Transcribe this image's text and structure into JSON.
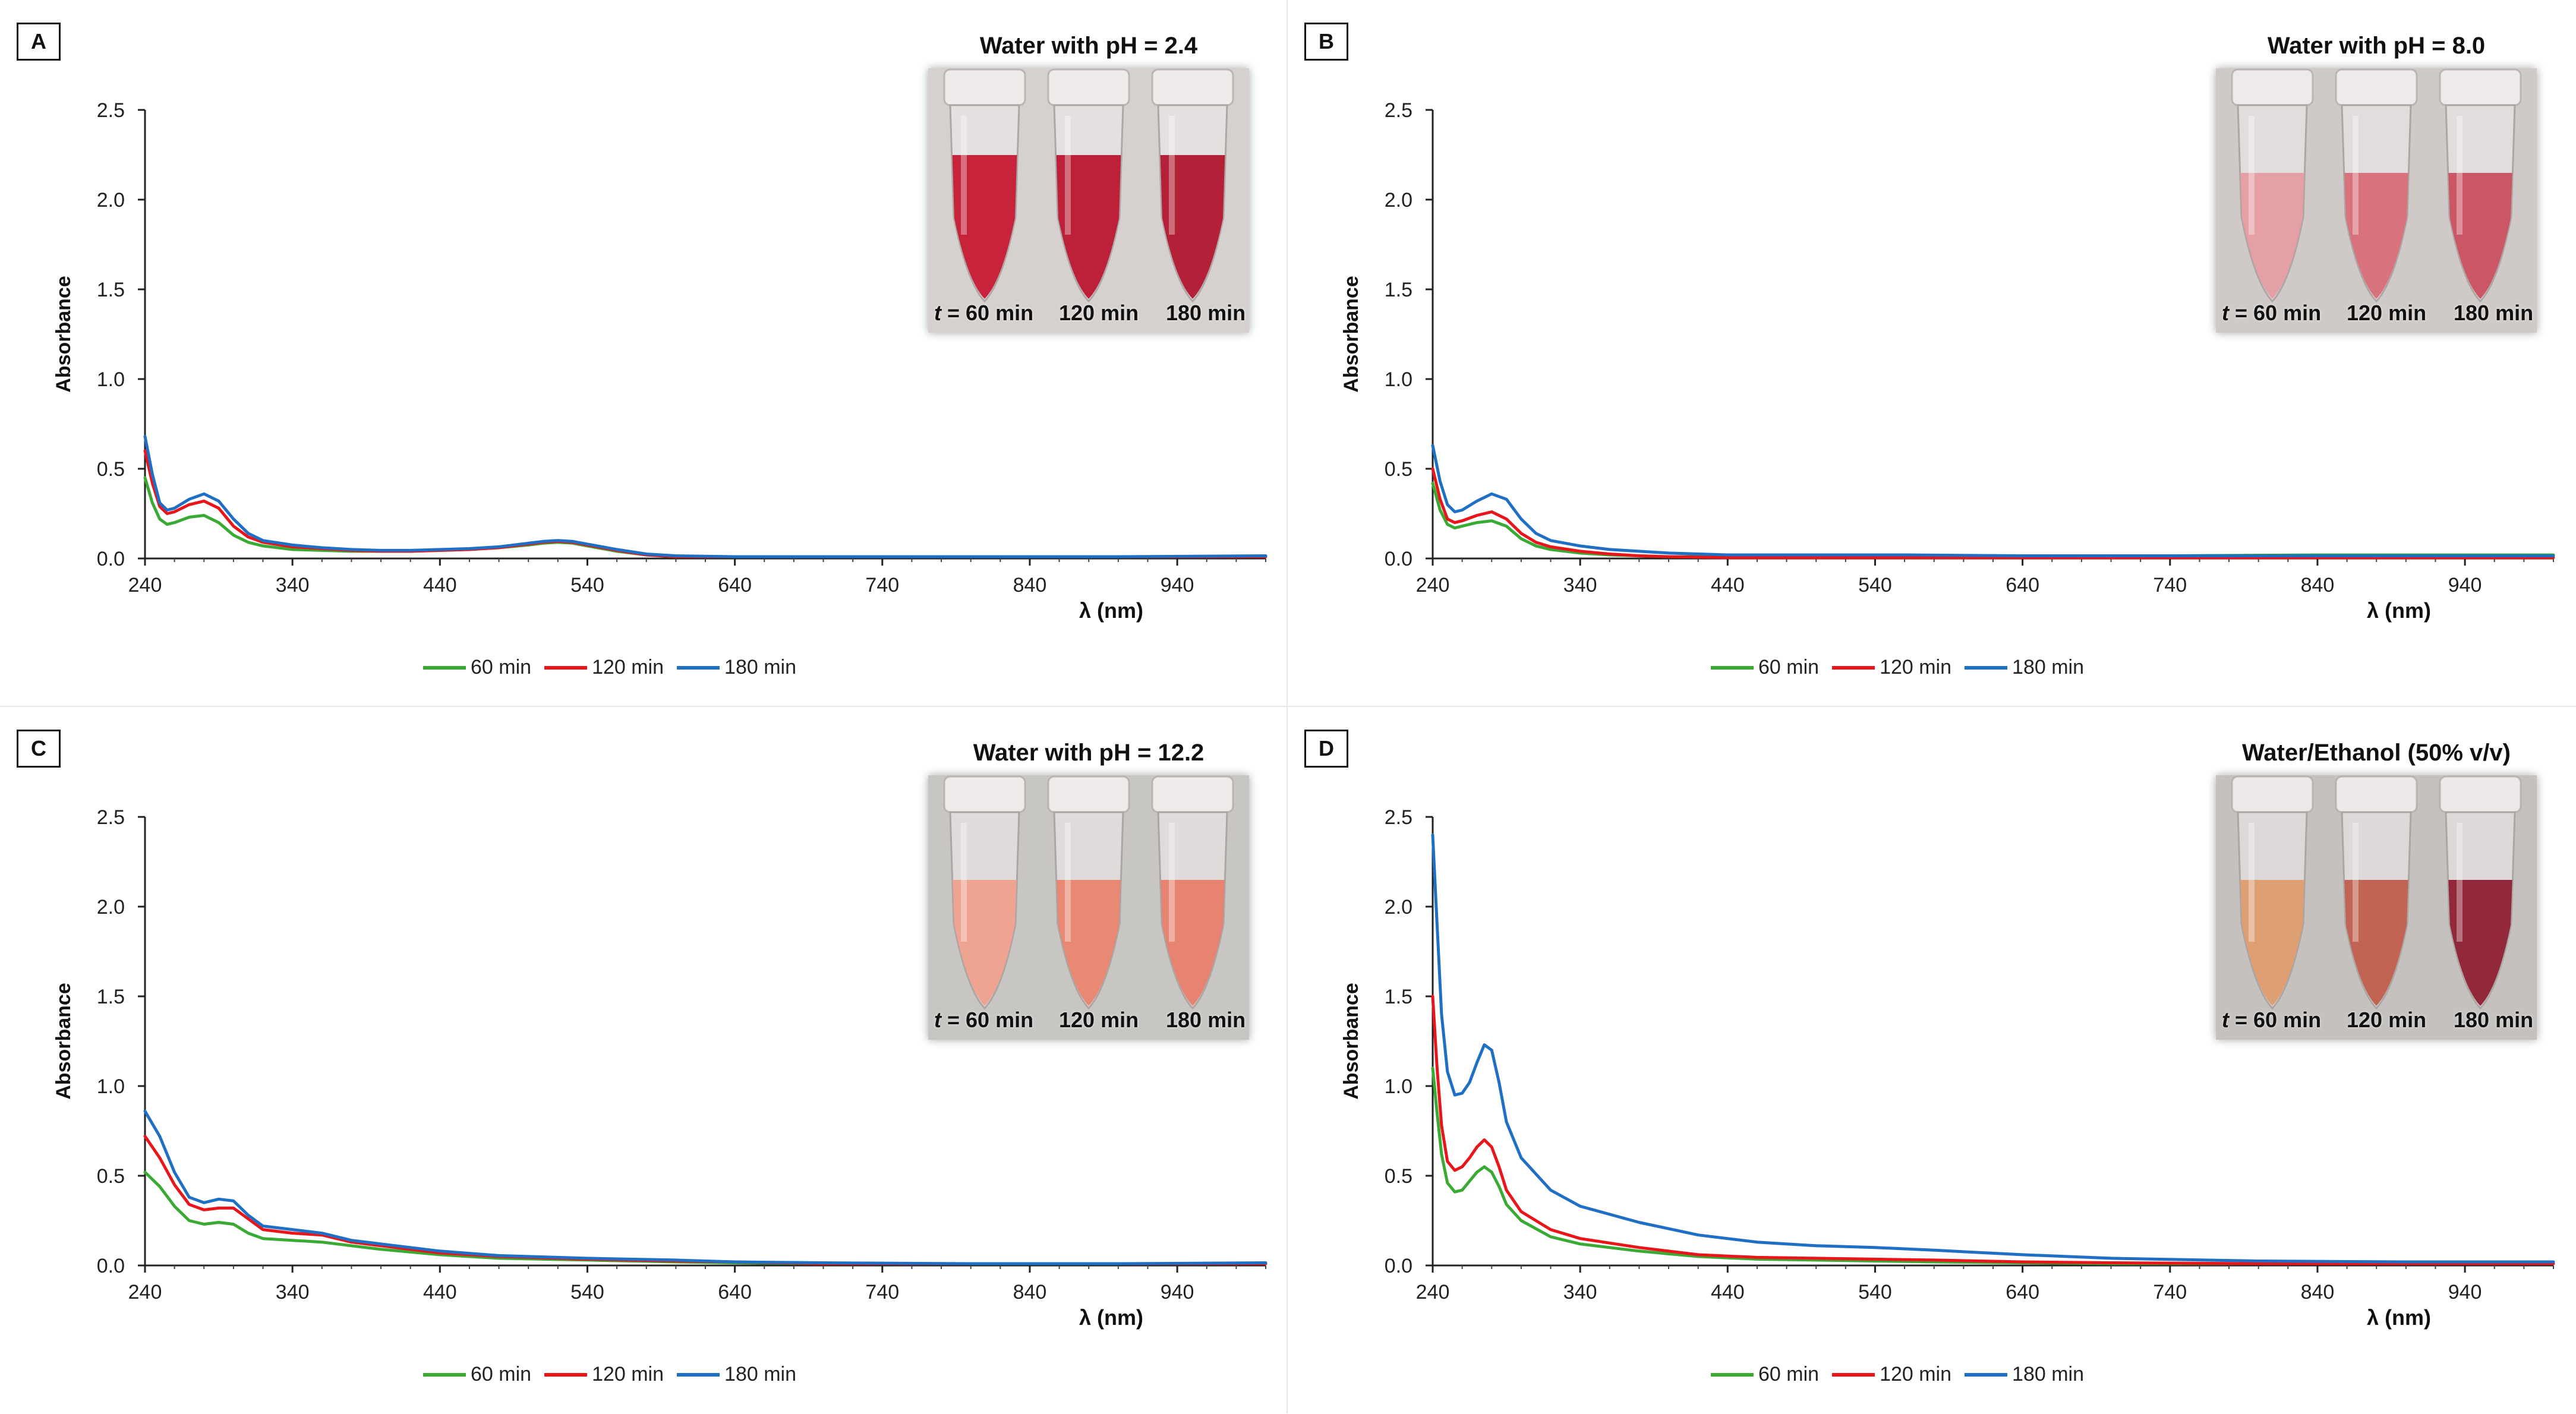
{
  "legend": {
    "items": [
      {
        "label": "60 min",
        "color": "#3aaa35"
      },
      {
        "label": "120 min",
        "color": "#e8161b"
      },
      {
        "label": "180 min",
        "color": "#1f6fc5"
      }
    ]
  },
  "photo_labels": {
    "prefix": "t",
    "t60": " = 60 min",
    "t120": "120 min",
    "t180": "180 min"
  },
  "panels": [
    {
      "letter": "A",
      "inset_title": "Water with pH = 2.4",
      "tube_colors": [
        "#c4122c",
        "#b9102a",
        "#b00f28"
      ],
      "tube_fill": 0.72,
      "photo_bg": "#d6d1ce"
    },
    {
      "letter": "B",
      "inset_title": "Water with pH = 8.0",
      "tube_colors": [
        "#e49aa0",
        "#d76874",
        "#c94a5a"
      ],
      "tube_fill": 0.62,
      "photo_bg": "#cfcac7"
    },
    {
      "letter": "C",
      "inset_title": "Water with pH = 12.2",
      "tube_colors": [
        "#efa08a",
        "#e8826a",
        "#e67c68"
      ],
      "tube_fill": 0.62,
      "photo_bg": "#c8c6c3"
    },
    {
      "letter": "D",
      "inset_title": "Water/Ethanol (50% v/v)",
      "tube_colors": [
        "#dd9a6a",
        "#bf5a48",
        "#8a1a2c"
      ],
      "tube_fill": 0.62,
      "photo_bg": "#c4c1be"
    }
  ],
  "chart_data": [
    {
      "type": "line",
      "title": "",
      "xlabel": "λ (nm)",
      "ylabel": "Absorbance",
      "xlim": [
        240,
        1000
      ],
      "ylim": [
        0,
        2.5
      ],
      "xticks": [
        240,
        340,
        440,
        540,
        640,
        740,
        840,
        940
      ],
      "yticks": [
        0.0,
        0.5,
        1.0,
        1.5,
        2.0,
        2.5
      ],
      "series": [
        {
          "name": "60 min",
          "x": [
            240,
            245,
            250,
            255,
            260,
            270,
            280,
            290,
            300,
            310,
            320,
            340,
            360,
            380,
            400,
            420,
            440,
            460,
            480,
            500,
            510,
            520,
            530,
            540,
            560,
            580,
            600,
            640,
            700,
            800,
            900,
            1000
          ],
          "y": [
            0.45,
            0.31,
            0.22,
            0.19,
            0.2,
            0.23,
            0.24,
            0.2,
            0.13,
            0.09,
            0.07,
            0.05,
            0.045,
            0.04,
            0.04,
            0.04,
            0.045,
            0.05,
            0.06,
            0.075,
            0.085,
            0.09,
            0.085,
            0.07,
            0.04,
            0.02,
            0.01,
            0.01,
            0.01,
            0.01,
            0.01,
            0.01
          ]
        },
        {
          "name": "120 min",
          "x": [
            240,
            245,
            250,
            255,
            260,
            270,
            280,
            290,
            300,
            310,
            320,
            340,
            360,
            380,
            400,
            420,
            440,
            460,
            480,
            500,
            510,
            520,
            530,
            540,
            560,
            580,
            600,
            640,
            700,
            800,
            900,
            1000
          ],
          "y": [
            0.6,
            0.42,
            0.29,
            0.25,
            0.26,
            0.3,
            0.32,
            0.28,
            0.18,
            0.12,
            0.09,
            0.065,
            0.055,
            0.045,
            0.04,
            0.04,
            0.045,
            0.05,
            0.06,
            0.08,
            0.09,
            0.095,
            0.09,
            0.075,
            0.045,
            0.02,
            0.01,
            0.01,
            0.01,
            0.01,
            0.01,
            0.01
          ]
        },
        {
          "name": "180 min",
          "x": [
            240,
            245,
            250,
            255,
            260,
            270,
            280,
            290,
            300,
            310,
            320,
            340,
            360,
            380,
            400,
            420,
            440,
            460,
            480,
            500,
            510,
            520,
            530,
            540,
            560,
            580,
            600,
            640,
            700,
            800,
            900,
            1000
          ],
          "y": [
            0.68,
            0.47,
            0.31,
            0.27,
            0.28,
            0.33,
            0.36,
            0.32,
            0.22,
            0.14,
            0.1,
            0.075,
            0.06,
            0.05,
            0.045,
            0.045,
            0.05,
            0.055,
            0.065,
            0.085,
            0.095,
            0.1,
            0.095,
            0.08,
            0.05,
            0.025,
            0.015,
            0.01,
            0.01,
            0.01,
            0.01,
            0.015
          ]
        }
      ]
    },
    {
      "type": "line",
      "title": "",
      "xlabel": "λ (nm)",
      "ylabel": "Absorbance",
      "xlim": [
        240,
        1000
      ],
      "ylim": [
        0,
        2.5
      ],
      "xticks": [
        240,
        340,
        440,
        540,
        640,
        740,
        840,
        940
      ],
      "yticks": [
        0.0,
        0.5,
        1.0,
        1.5,
        2.0,
        2.5
      ],
      "series": [
        {
          "name": "60 min",
          "x": [
            240,
            245,
            250,
            255,
            260,
            270,
            280,
            290,
            300,
            310,
            320,
            340,
            360,
            380,
            400,
            440,
            500,
            560,
            640,
            740,
            840,
            940,
            1000
          ],
          "y": [
            0.42,
            0.27,
            0.19,
            0.17,
            0.18,
            0.2,
            0.21,
            0.18,
            0.11,
            0.07,
            0.05,
            0.03,
            0.02,
            0.015,
            0.01,
            0.01,
            0.01,
            0.01,
            0.01,
            0.015,
            0.02,
            0.02,
            0.02
          ]
        },
        {
          "name": "120 min",
          "x": [
            240,
            245,
            250,
            255,
            260,
            270,
            280,
            290,
            300,
            310,
            320,
            340,
            360,
            380,
            400,
            440,
            500,
            560,
            640,
            740,
            840,
            940,
            1000
          ],
          "y": [
            0.5,
            0.33,
            0.22,
            0.2,
            0.21,
            0.24,
            0.26,
            0.22,
            0.14,
            0.09,
            0.065,
            0.04,
            0.025,
            0.015,
            0.01,
            0.005,
            0.005,
            0.005,
            0.005,
            0.005,
            0.005,
            0.005,
            0.005
          ]
        },
        {
          "name": "180 min",
          "x": [
            240,
            245,
            250,
            255,
            260,
            270,
            280,
            290,
            300,
            310,
            320,
            340,
            360,
            380,
            400,
            440,
            500,
            560,
            640,
            740,
            840,
            940,
            1000
          ],
          "y": [
            0.63,
            0.43,
            0.3,
            0.26,
            0.27,
            0.32,
            0.36,
            0.33,
            0.22,
            0.14,
            0.1,
            0.07,
            0.05,
            0.04,
            0.03,
            0.02,
            0.02,
            0.02,
            0.015,
            0.015,
            0.015,
            0.015,
            0.015
          ]
        }
      ]
    },
    {
      "type": "line",
      "title": "",
      "xlabel": "λ (nm)",
      "ylabel": "Absorbance",
      "xlim": [
        240,
        1000
      ],
      "ylim": [
        0,
        2.5
      ],
      "xticks": [
        240,
        340,
        440,
        540,
        640,
        740,
        840,
        940
      ],
      "yticks": [
        0.0,
        0.5,
        1.0,
        1.5,
        2.0,
        2.5
      ],
      "series": [
        {
          "name": "60 min",
          "x": [
            240,
            250,
            260,
            270,
            280,
            290,
            300,
            310,
            320,
            340,
            360,
            380,
            400,
            440,
            480,
            540,
            600,
            640,
            700,
            800,
            900,
            1000
          ],
          "y": [
            0.52,
            0.44,
            0.33,
            0.25,
            0.23,
            0.24,
            0.23,
            0.18,
            0.15,
            0.14,
            0.13,
            0.11,
            0.09,
            0.06,
            0.04,
            0.03,
            0.02,
            0.015,
            0.01,
            0.01,
            0.01,
            0.01
          ]
        },
        {
          "name": "120 min",
          "x": [
            240,
            250,
            260,
            270,
            280,
            290,
            300,
            310,
            320,
            340,
            360,
            380,
            400,
            440,
            480,
            540,
            600,
            640,
            700,
            800,
            900,
            1000
          ],
          "y": [
            0.72,
            0.6,
            0.45,
            0.34,
            0.31,
            0.32,
            0.32,
            0.26,
            0.2,
            0.18,
            0.17,
            0.13,
            0.11,
            0.07,
            0.05,
            0.035,
            0.025,
            0.02,
            0.01,
            0.01,
            0.01,
            0.01
          ]
        },
        {
          "name": "180 min",
          "x": [
            240,
            250,
            260,
            270,
            280,
            290,
            300,
            310,
            320,
            340,
            360,
            380,
            400,
            440,
            480,
            540,
            600,
            640,
            700,
            800,
            900,
            1000
          ],
          "y": [
            0.86,
            0.72,
            0.52,
            0.38,
            0.35,
            0.37,
            0.36,
            0.28,
            0.22,
            0.2,
            0.18,
            0.14,
            0.12,
            0.08,
            0.055,
            0.04,
            0.03,
            0.02,
            0.015,
            0.01,
            0.01,
            0.015
          ]
        }
      ]
    },
    {
      "type": "line",
      "title": "",
      "xlabel": "λ (nm)",
      "ylabel": "Absorbance",
      "xlim": [
        240,
        1000
      ],
      "ylim": [
        0,
        2.5
      ],
      "xticks": [
        240,
        340,
        440,
        540,
        640,
        740,
        840,
        940
      ],
      "yticks": [
        0.0,
        0.5,
        1.0,
        1.5,
        2.0,
        2.5
      ],
      "series": [
        {
          "name": "60 min",
          "x": [
            240,
            243,
            246,
            250,
            255,
            260,
            265,
            270,
            275,
            280,
            285,
            290,
            300,
            320,
            340,
            380,
            420,
            460,
            500,
            540,
            580,
            640,
            700,
            800,
            900,
            1000
          ],
          "y": [
            1.1,
            0.85,
            0.62,
            0.46,
            0.41,
            0.42,
            0.47,
            0.52,
            0.55,
            0.52,
            0.44,
            0.34,
            0.25,
            0.16,
            0.12,
            0.08,
            0.05,
            0.035,
            0.03,
            0.025,
            0.02,
            0.015,
            0.01,
            0.01,
            0.01,
            0.01
          ]
        },
        {
          "name": "120 min",
          "x": [
            240,
            243,
            246,
            250,
            255,
            260,
            265,
            270,
            275,
            280,
            285,
            290,
            300,
            320,
            340,
            380,
            420,
            460,
            500,
            540,
            580,
            640,
            700,
            800,
            900,
            1000
          ],
          "y": [
            1.5,
            1.1,
            0.78,
            0.58,
            0.53,
            0.55,
            0.6,
            0.66,
            0.7,
            0.66,
            0.55,
            0.42,
            0.3,
            0.2,
            0.15,
            0.1,
            0.06,
            0.045,
            0.04,
            0.035,
            0.03,
            0.02,
            0.015,
            0.01,
            0.01,
            0.01
          ]
        },
        {
          "name": "180 min",
          "x": [
            240,
            243,
            246,
            250,
            255,
            260,
            265,
            270,
            275,
            280,
            285,
            290,
            300,
            320,
            340,
            380,
            420,
            460,
            500,
            540,
            580,
            640,
            700,
            800,
            900,
            1000
          ],
          "y": [
            2.4,
            1.9,
            1.4,
            1.08,
            0.95,
            0.96,
            1.02,
            1.13,
            1.23,
            1.2,
            1.02,
            0.8,
            0.6,
            0.42,
            0.33,
            0.24,
            0.17,
            0.13,
            0.11,
            0.1,
            0.085,
            0.06,
            0.04,
            0.025,
            0.02,
            0.02
          ]
        }
      ]
    }
  ]
}
